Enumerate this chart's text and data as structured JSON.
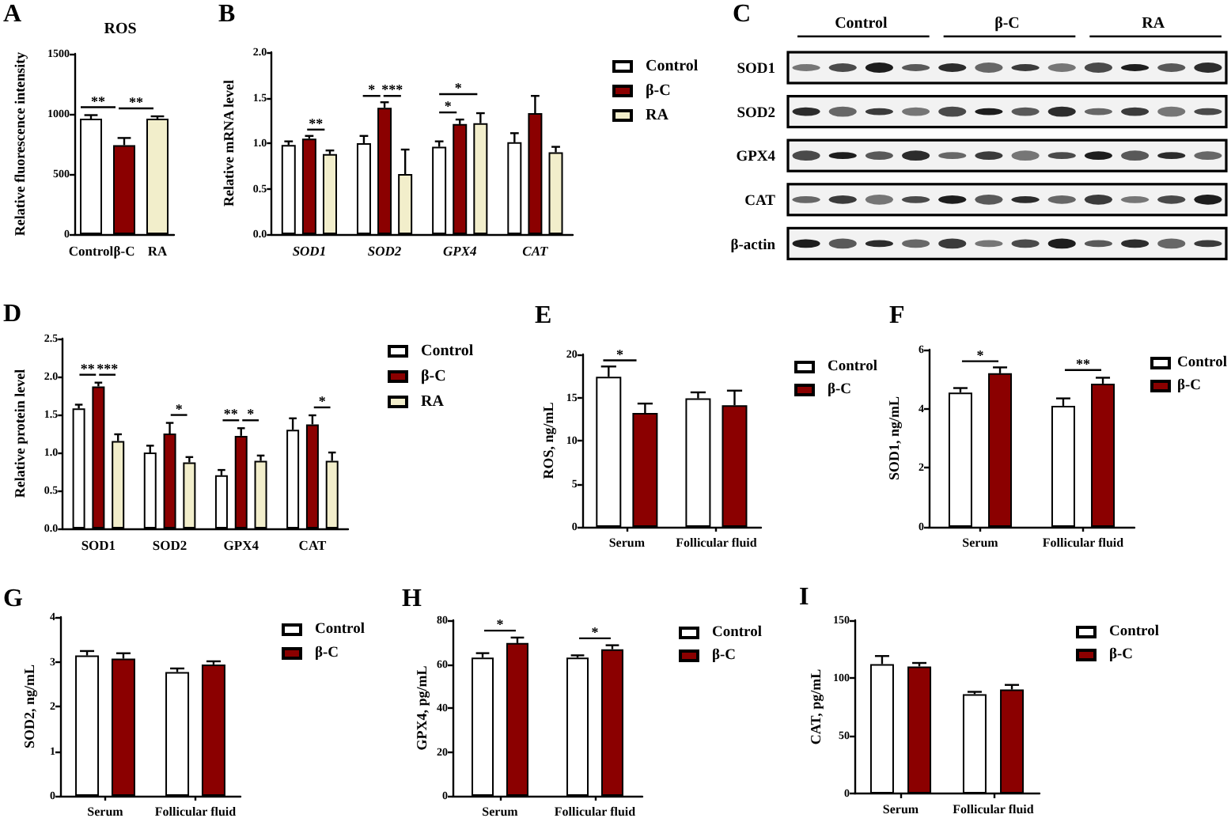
{
  "chart_data": [
    {
      "type": "bar",
      "title": "ROS",
      "ylabel": "Relative fluorescence intensity",
      "categories": [
        "Control",
        "β-C",
        "RA"
      ],
      "values": [
        960,
        740,
        960
      ],
      "colors": [
        "#ffffff",
        "#8b0000",
        "#f2eecb"
      ],
      "errors": [
        [
          960,
          990
        ],
        [
          740,
          800
        ],
        [
          960,
          980
        ]
      ],
      "ylim": [
        0,
        1500
      ],
      "yticks": [
        0,
        500,
        1000,
        1500
      ],
      "annotations": [
        "A",
        "**",
        "**"
      ]
    },
    {
      "type": "bar",
      "ylabel": "Relative mRNA level",
      "categories": [
        "SOD1",
        "SOD2",
        "GPX4",
        "CAT"
      ],
      "series": [
        {
          "name": "Control",
          "color": "#ffffff",
          "values": [
            0.98,
            1.0,
            0.96,
            1.01
          ],
          "errors": [
            [
              0.98,
              1.02
            ],
            [
              1.0,
              1.08
            ],
            [
              0.96,
              1.02
            ],
            [
              1.01,
              1.11
            ]
          ]
        },
        {
          "name": "β-C",
          "color": "#8b0000",
          "values": [
            1.05,
            1.39,
            1.21,
            1.33
          ],
          "errors": [
            [
              1.05,
              1.08
            ],
            [
              1.39,
              1.45
            ],
            [
              1.21,
              1.26
            ],
            [
              1.33,
              1.52
            ]
          ]
        },
        {
          "name": "RA",
          "color": "#f2eecb",
          "values": [
            0.88,
            0.66,
            1.22,
            0.9
          ],
          "errors": [
            [
              0.88,
              0.92
            ],
            [
              0.66,
              0.93
            ],
            [
              1.22,
              1.33
            ],
            [
              0.9,
              0.96
            ]
          ]
        }
      ],
      "ylim": [
        0,
        2
      ],
      "yticks": [
        {
          "value": 0,
          "label": "0.0"
        },
        {
          "value": 0.5,
          "label": "0.5"
        },
        {
          "value": 1,
          "label": "1.0"
        },
        {
          "value": 1.5,
          "label": "1.5"
        },
        {
          "value": 2,
          "label": "2.0"
        }
      ],
      "legend": "right",
      "annotations": [
        "B",
        "**",
        "*",
        "***",
        "*",
        "*"
      ]
    },
    {
      "type": "other",
      "categories": [
        "Control",
        "β-C",
        "RA"
      ],
      "annotations": [
        "C",
        "SOD1",
        "SOD2",
        "GPX4",
        "CAT",
        "β-actin"
      ]
    },
    {
      "type": "bar",
      "ylabel": "Relative protein level",
      "categories": [
        "SOD1",
        "SOD2",
        "GPX4",
        "CAT"
      ],
      "series": [
        {
          "name": "Control",
          "color": "#ffffff",
          "values": [
            1.58,
            1.0,
            0.7,
            1.3
          ],
          "errors": [
            [
              1.58,
              1.63
            ],
            [
              1.0,
              1.09
            ],
            [
              0.7,
              0.77
            ],
            [
              1.3,
              1.45
            ]
          ]
        },
        {
          "name": "β-C",
          "color": "#8b0000",
          "values": [
            1.87,
            1.25,
            1.22,
            1.37
          ],
          "errors": [
            [
              1.87,
              1.92
            ],
            [
              1.25,
              1.39
            ],
            [
              1.22,
              1.32
            ],
            [
              1.37,
              1.49
            ]
          ]
        },
        {
          "name": "RA",
          "color": "#f2eecb",
          "values": [
            1.15,
            0.87,
            0.89,
            0.89
          ],
          "errors": [
            [
              1.15,
              1.24
            ],
            [
              0.87,
              0.94
            ],
            [
              0.89,
              0.96
            ],
            [
              0.89,
              1.0
            ]
          ]
        }
      ],
      "ylim": [
        0,
        2.5
      ],
      "yticks": [
        {
          "value": 0,
          "label": "0.0"
        },
        {
          "value": 0.5,
          "label": "0.5"
        },
        {
          "value": 1,
          "label": "1.0"
        },
        {
          "value": 1.5,
          "label": "1.5"
        },
        {
          "value": 2,
          "label": "2.0"
        },
        {
          "value": 2.5,
          "label": "2.5"
        }
      ],
      "legend": "right",
      "annotations": [
        "D",
        "**",
        "***",
        "*",
        "**",
        "*",
        "*"
      ]
    },
    {
      "type": "bar",
      "ylabel": "ROS, ng/mL",
      "categories": [
        "Serum",
        "Follicular fluid"
      ],
      "series": [
        {
          "name": "Control",
          "color": "#ffffff",
          "values": [
            17.4,
            14.9
          ],
          "errors": [
            [
              17.4,
              18.6
            ],
            [
              14.9,
              15.6
            ]
          ]
        },
        {
          "name": "β-C",
          "color": "#8b0000",
          "values": [
            13.2,
            14.1
          ],
          "errors": [
            [
              13.2,
              14.3
            ],
            [
              14.1,
              15.8
            ]
          ]
        }
      ],
      "ylim": [
        0,
        20
      ],
      "yticks": [
        0,
        5,
        10,
        15,
        20
      ],
      "legend": "right",
      "annotations": [
        "E",
        "*"
      ]
    },
    {
      "type": "bar",
      "ylabel": "SOD1, ng/mL",
      "categories": [
        "Serum",
        "Follicular fluid"
      ],
      "series": [
        {
          "name": "Control",
          "color": "#ffffff",
          "values": [
            4.55,
            4.1
          ],
          "errors": [
            [
              4.55,
              4.7
            ],
            [
              4.1,
              4.35
            ]
          ]
        },
        {
          "name": "β-C",
          "color": "#8b0000",
          "values": [
            5.2,
            4.85
          ],
          "errors": [
            [
              5.2,
              5.4
            ],
            [
              4.85,
              5.05
            ]
          ]
        }
      ],
      "ylim": [
        0,
        6
      ],
      "yticks": [
        0,
        2,
        4,
        6
      ],
      "legend": "right",
      "annotations": [
        "F",
        "*",
        "**"
      ]
    },
    {
      "type": "bar",
      "ylabel": "SOD2, ng/mL",
      "categories": [
        "Serum",
        "Follicular fluid"
      ],
      "series": [
        {
          "name": "Control",
          "color": "#ffffff",
          "values": [
            3.14,
            2.77
          ],
          "errors": [
            [
              3.14,
              3.24
            ],
            [
              2.77,
              2.85
            ]
          ]
        },
        {
          "name": "β-C",
          "color": "#8b0000",
          "values": [
            3.07,
            2.94
          ],
          "errors": [
            [
              3.07,
              3.19
            ],
            [
              2.94,
              3.01
            ]
          ]
        }
      ],
      "ylim": [
        0,
        4
      ],
      "yticks": [
        0,
        1,
        2,
        3,
        4
      ],
      "legend": "right",
      "annotations": [
        "G"
      ]
    },
    {
      "type": "bar",
      "ylabel": "GPX4, pg/mL",
      "categories": [
        "Serum",
        "Follicular fluid"
      ],
      "series": [
        {
          "name": "Control",
          "color": "#ffffff",
          "values": [
            63,
            63
          ],
          "errors": [
            [
              63,
              65
            ],
            [
              63,
              64
            ]
          ]
        },
        {
          "name": "β-C",
          "color": "#8b0000",
          "values": [
            69.6,
            66.8
          ],
          "errors": [
            [
              69.6,
              72.1
            ],
            [
              66.8,
              68.6
            ]
          ]
        }
      ],
      "ylim": [
        0,
        80
      ],
      "yticks": [
        0,
        20,
        40,
        60,
        80
      ],
      "legend": "right",
      "annotations": [
        "H",
        "*",
        "*"
      ]
    },
    {
      "type": "bar",
      "ylabel": "CAT, pg/mL",
      "categories": [
        "Serum",
        "Follicular fluid"
      ],
      "series": [
        {
          "name": "Control",
          "color": "#ffffff",
          "values": [
            112,
            86
          ],
          "errors": [
            [
              112,
              119
            ],
            [
              86,
              88
            ]
          ]
        },
        {
          "name": "β-C",
          "color": "#8b0000",
          "values": [
            110,
            90
          ],
          "errors": [
            [
              110,
              113
            ],
            [
              90,
              94
            ]
          ]
        }
      ],
      "ylim": [
        0,
        150
      ],
      "yticks": [
        0,
        50,
        100,
        150
      ],
      "legend": "right",
      "annotations": [
        "I"
      ]
    }
  ]
}
